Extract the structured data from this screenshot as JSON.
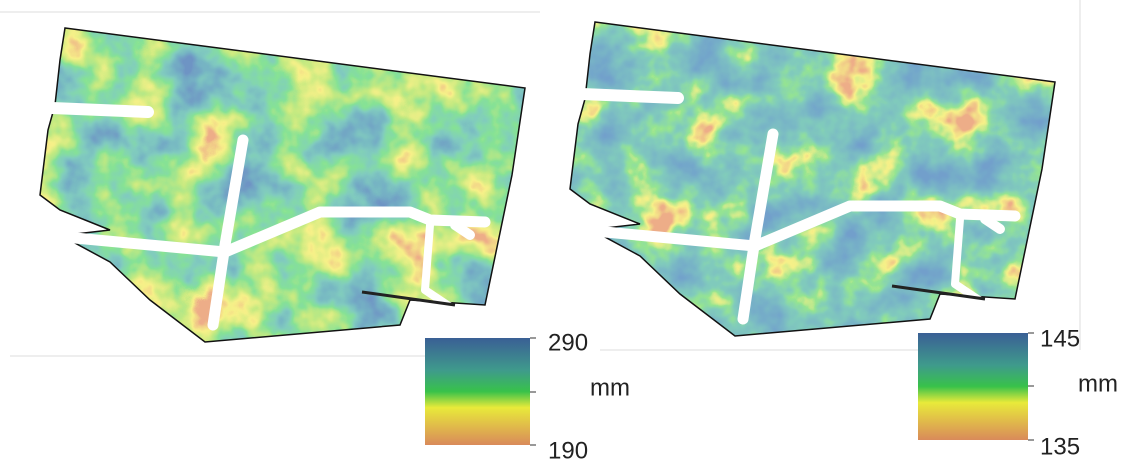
{
  "maps": [
    {
      "colorbar": {
        "max": 290,
        "unit": "mm",
        "min": 190
      }
    },
    {
      "colorbar": {
        "max": 145,
        "unit": "mm",
        "min": 135
      }
    }
  ]
}
